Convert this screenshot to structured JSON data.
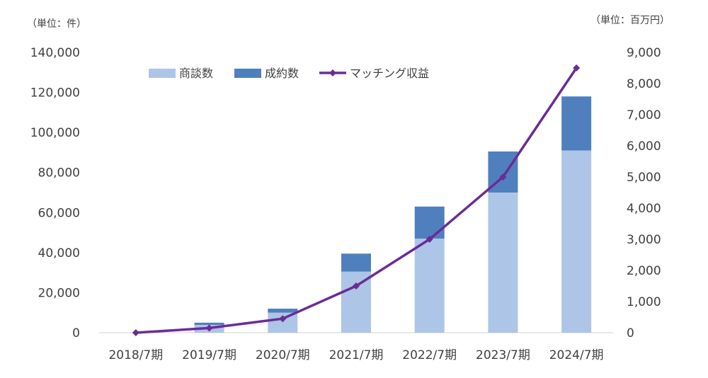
{
  "chart_data": {
    "type": "bar",
    "subtype": "stacked-bar-with-line",
    "categories": [
      "2018/7期",
      "2019/7期",
      "2020/7期",
      "2021/7期",
      "2022/7期",
      "2023/7期",
      "2024/7期"
    ],
    "series": [
      {
        "name": "商談数",
        "type": "bar",
        "axis": "left",
        "color": "#adc5e6",
        "values": [
          0,
          3900,
          10000,
          30500,
          47000,
          70000,
          91000
        ]
      },
      {
        "name": "成約数",
        "type": "bar",
        "axis": "left",
        "color": "#4f80bd",
        "values": [
          0,
          1100,
          2000,
          9000,
          16000,
          20500,
          27000
        ]
      },
      {
        "name": "マッチング収益",
        "type": "line",
        "axis": "right",
        "color": "#6a2c96",
        "marker": "diamond",
        "values": [
          0,
          150,
          450,
          1500,
          3000,
          5000,
          8500
        ]
      }
    ],
    "left_axis": {
      "unit_label": "（単位：件）",
      "ylim": [
        0,
        140000
      ],
      "ticks": [
        0,
        20000,
        40000,
        60000,
        80000,
        100000,
        120000,
        140000
      ],
      "tick_labels": [
        "0",
        "20,000",
        "40,000",
        "60,000",
        "80,000",
        "100,000",
        "120,000",
        "140,000"
      ]
    },
    "right_axis": {
      "unit_label": "（単位：百万円）",
      "ylim": [
        0,
        9000
      ],
      "ticks": [
        0,
        1000,
        2000,
        3000,
        4000,
        5000,
        6000,
        7000,
        8000,
        9000
      ],
      "tick_labels": [
        "0",
        "1,000",
        "2,000",
        "3,000",
        "4,000",
        "5,000",
        "6,000",
        "7,000",
        "8,000",
        "9,000"
      ]
    },
    "grid": false,
    "legend_position": "top-left"
  }
}
